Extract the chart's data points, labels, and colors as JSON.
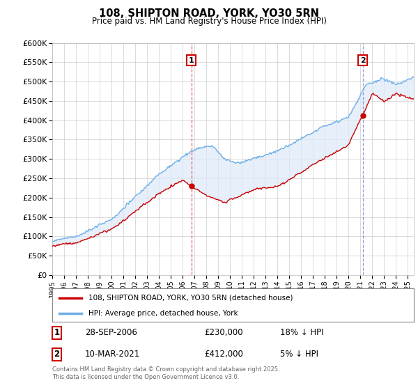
{
  "title_line1": "108, SHIPTON ROAD, YORK, YO30 5RN",
  "title_line2": "Price paid vs. HM Land Registry's House Price Index (HPI)",
  "ylabel_ticks": [
    "£0",
    "£50K",
    "£100K",
    "£150K",
    "£200K",
    "£250K",
    "£300K",
    "£350K",
    "£400K",
    "£450K",
    "£500K",
    "£550K",
    "£600K"
  ],
  "ytick_values": [
    0,
    50000,
    100000,
    150000,
    200000,
    250000,
    300000,
    350000,
    400000,
    450000,
    500000,
    550000,
    600000
  ],
  "xlim_start": 1995.0,
  "xlim_end": 2025.5,
  "ylim_min": 0,
  "ylim_max": 600000,
  "hpi_color": "#6daee8",
  "hpi_fill_color": "#ddeaf8",
  "price_color": "#cc0000",
  "vline1_color": "#e05050",
  "vline1_style": "--",
  "vline2_color": "#8080cc",
  "vline2_style": "--",
  "transaction1_date": 2006.74,
  "transaction1_price": 230000,
  "transaction1_label": "1",
  "transaction2_date": 2021.19,
  "transaction2_price": 412000,
  "transaction2_label": "2",
  "legend_label_red": "108, SHIPTON ROAD, YORK, YO30 5RN (detached house)",
  "legend_label_blue": "HPI: Average price, detached house, York",
  "table_row1": [
    "1",
    "28-SEP-2006",
    "£230,000",
    "18% ↓ HPI"
  ],
  "table_row2": [
    "2",
    "10-MAR-2021",
    "£412,000",
    "5% ↓ HPI"
  ],
  "footnote": "Contains HM Land Registry data © Crown copyright and database right 2025.\nThis data is licensed under the Open Government Licence v3.0.",
  "bg_color": "#ffffff",
  "grid_color": "#cccccc"
}
